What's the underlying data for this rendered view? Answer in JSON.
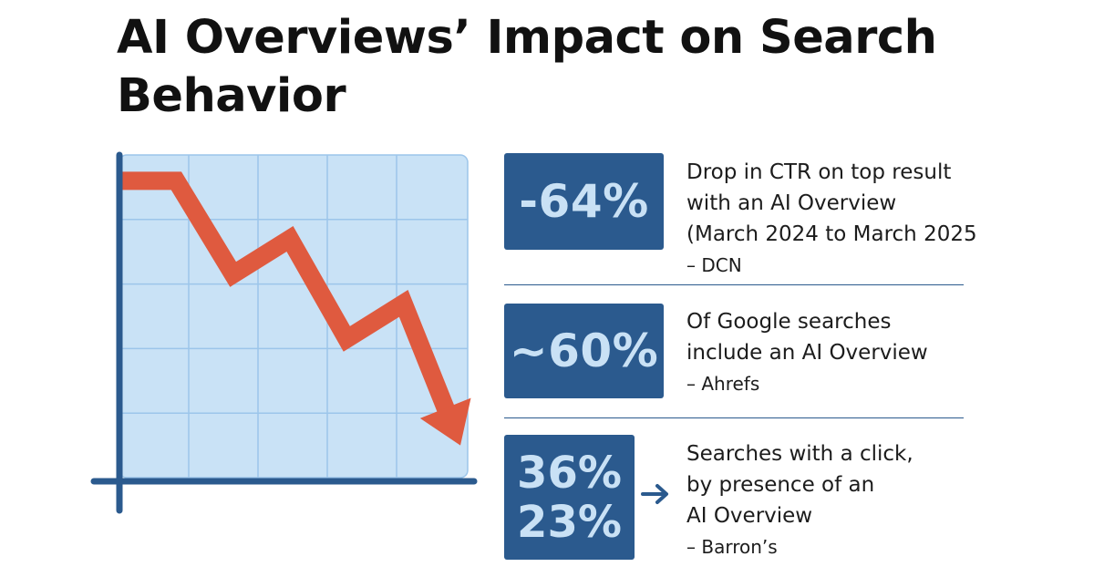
{
  "title_line1": "AI Overviews’ Impact on Search",
  "title_line2": "Behavior",
  "colors": {
    "navy": "#2b5a8e",
    "light_blue_text": "#c9e1f5",
    "plot_bg": "#c9e2f6",
    "grid": "#9cc5ea",
    "trend": "#df5a3f"
  },
  "stats": [
    {
      "value": "-64%",
      "lines": [
        "Drop in CTR on top result",
        "with an AI Overview",
        "(March 2024 to March  2025"
      ],
      "source": "– DCN"
    },
    {
      "value": "~60%",
      "lines": [
        "Of Google searches",
        "include an AI Overview"
      ],
      "source": "– Ahrefs"
    },
    {
      "values": [
        "36%",
        "23%"
      ],
      "arrow_icon": "right-arrow-icon",
      "lines": [
        "Searches with a click,",
        "by presence of an",
        "AI Overview"
      ],
      "source": "– Barron’s"
    }
  ],
  "chart_data": {
    "type": "line",
    "title": "",
    "xlabel": "",
    "ylabel": "",
    "grid": true,
    "legend": "none",
    "x": [
      0,
      1,
      2,
      3,
      4,
      5,
      6
    ],
    "series": [
      {
        "values": [
          9.2,
          9.2,
          6.3,
          7.4,
          4.3,
          5.4,
          1.0
        ]
      }
    ],
    "xlim": [
      0,
      6
    ],
    "ylim": [
      0,
      10
    ],
    "trend_direction": "down",
    "end_marker": "arrowhead"
  }
}
